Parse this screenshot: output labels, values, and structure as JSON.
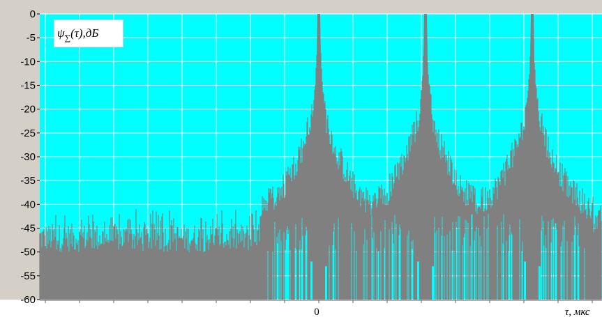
{
  "chart_data": {
    "type": "area",
    "title": "",
    "ylabel_parts": {
      "symbol": "ψ",
      "subscript": "∑",
      "argument": "(τ),",
      "unit": "дБ"
    },
    "xlabel": "τ, мкс",
    "ylim": [
      -60,
      0
    ],
    "yticks": [
      0,
      -5,
      -10,
      -15,
      -20,
      -25,
      -30,
      -35,
      -40,
      -45,
      -50,
      -55,
      -60
    ],
    "x_tick_labels": [
      {
        "x": 0,
        "label": "0"
      }
    ],
    "grid": true,
    "background_color": "#00ffff",
    "fill_color": "#808080",
    "frame_color": "#d4d0c8",
    "grid_color": "#ffffff",
    "series": [
      {
        "peaks_x": [
          0,
          1,
          2
        ],
        "peak_value": 0,
        "peak_flank_envelope": [
          {
            "dx": 0.0,
            "y": 0
          },
          {
            "dx": 0.03,
            "y": -14
          },
          {
            "dx": 0.07,
            "y": -22
          },
          {
            "dx": 0.15,
            "y": -28
          },
          {
            "dx": 0.25,
            "y": -33
          },
          {
            "dx": 0.35,
            "y": -37
          },
          {
            "dx": 0.5,
            "y": -40
          }
        ],
        "noise_floor_range": [
          -60,
          -41
        ],
        "left_region_level": [
          -50,
          -44
        ]
      }
    ]
  }
}
